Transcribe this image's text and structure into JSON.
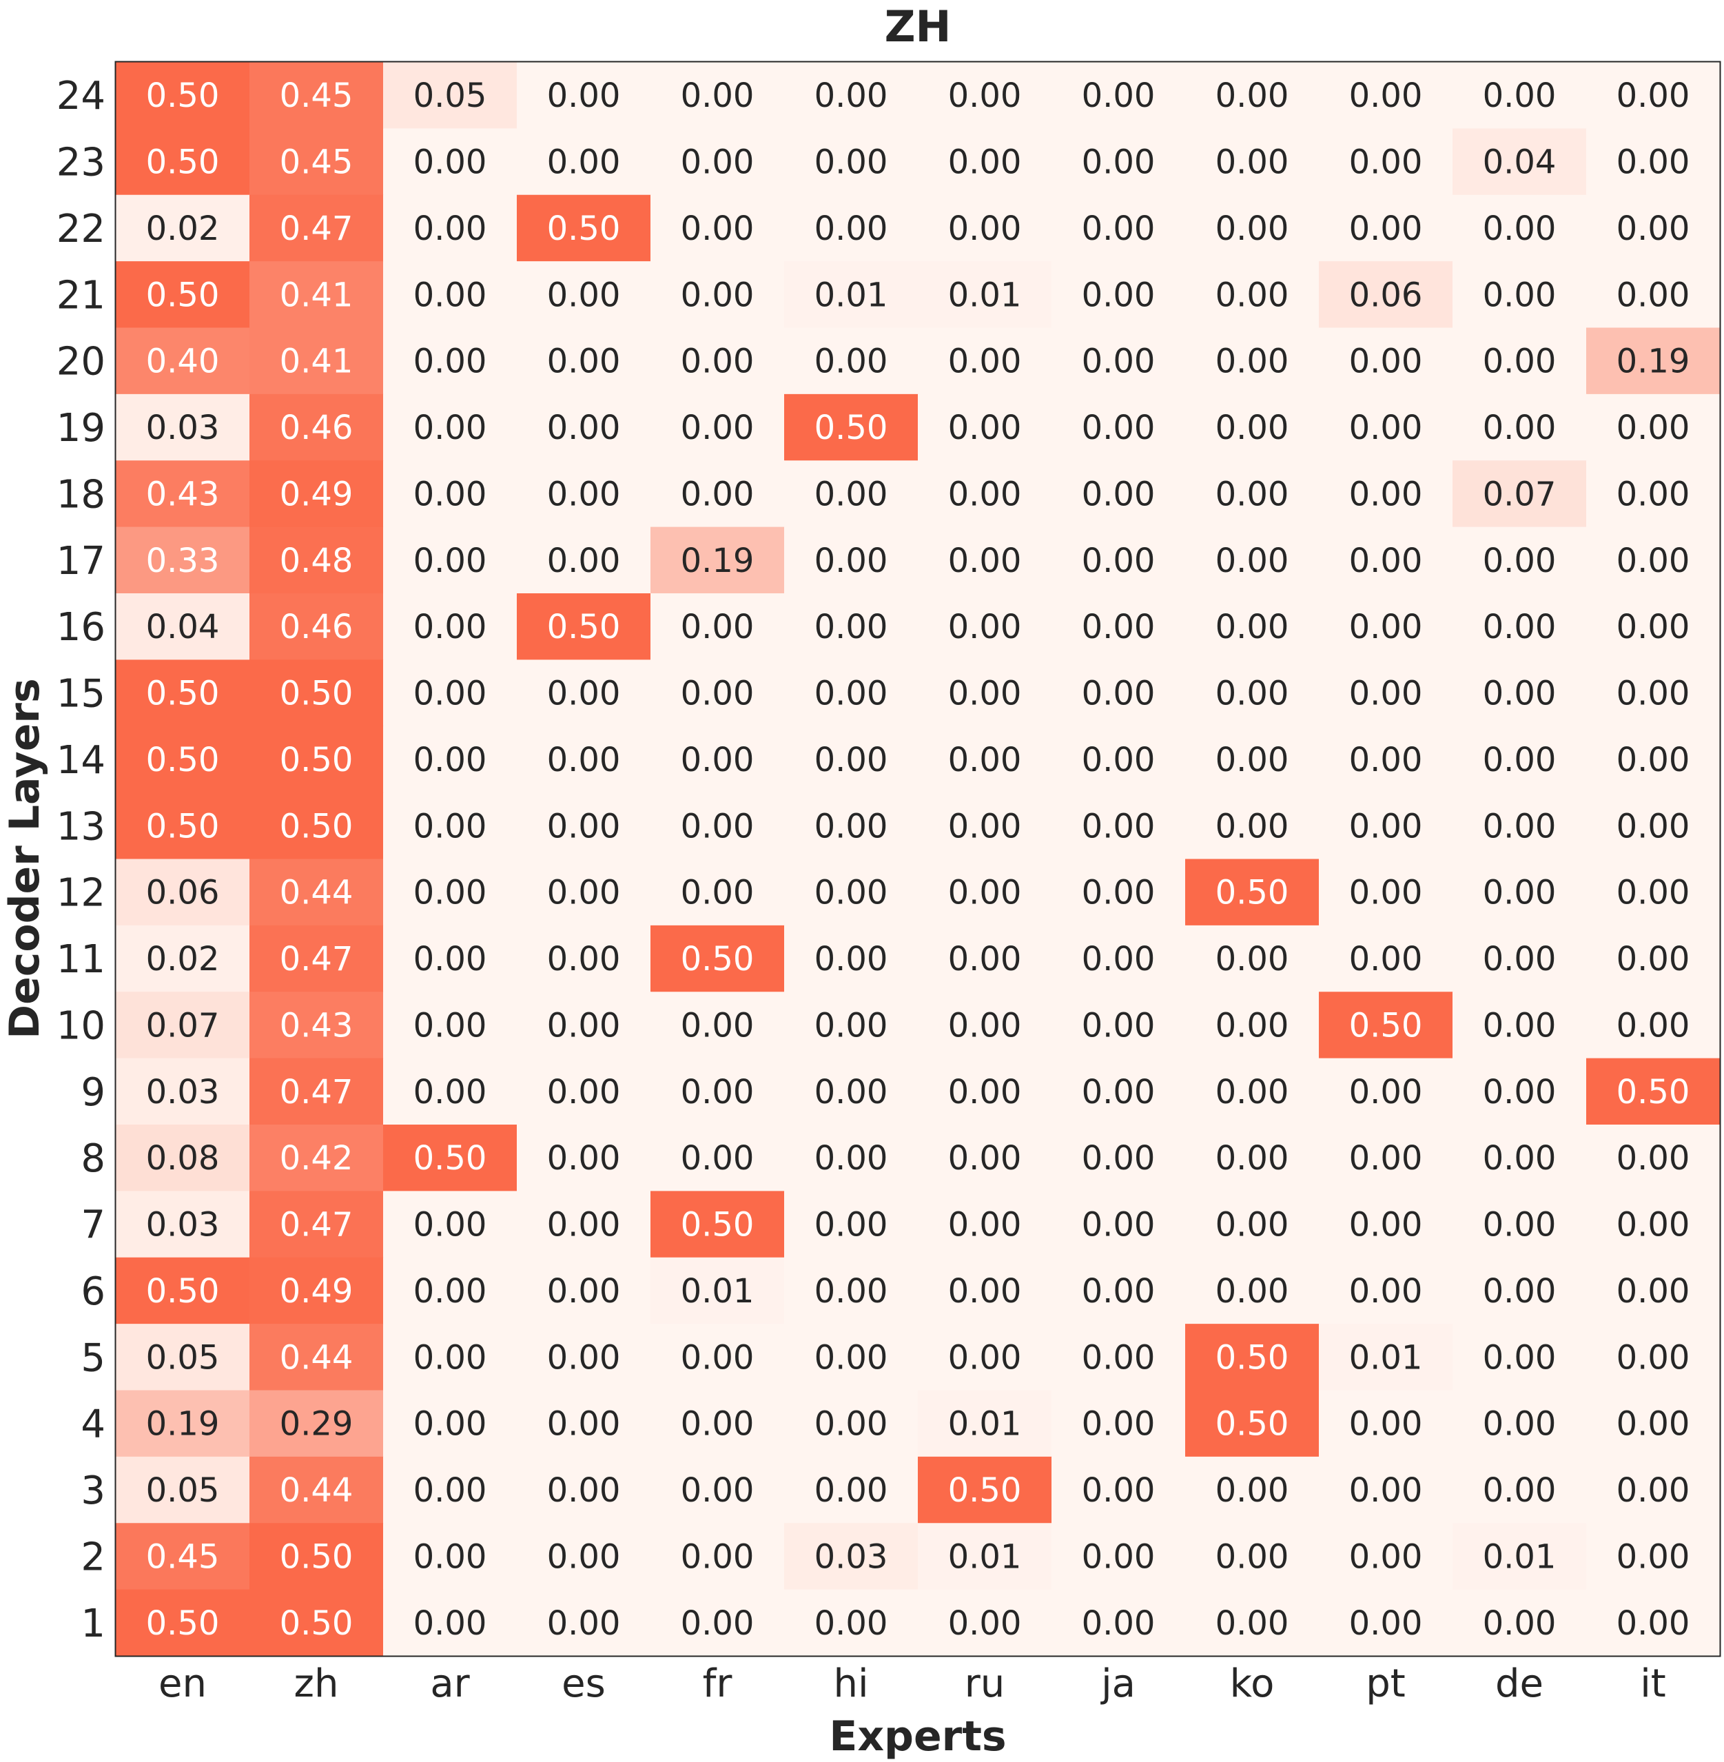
{
  "chart_data": {
    "type": "heatmap",
    "title": "ZH",
    "xlabel": "Experts",
    "ylabel": "Decoder Layers",
    "x_categories": [
      "en",
      "zh",
      "ar",
      "es",
      "fr",
      "hi",
      "ru",
      "ja",
      "ko",
      "pt",
      "de",
      "it"
    ],
    "y_categories": [
      "24",
      "23",
      "22",
      "21",
      "20",
      "19",
      "18",
      "17",
      "16",
      "15",
      "14",
      "13",
      "12",
      "11",
      "10",
      "9",
      "8",
      "7",
      "6",
      "5",
      "4",
      "3",
      "2",
      "1"
    ],
    "value_range": [
      0,
      0.5
    ],
    "colormap": {
      "low": "#fff5f0",
      "high": "#fb6a4a"
    },
    "values": [
      [
        "0.50",
        "0.45",
        "0.05",
        "0.00",
        "0.00",
        "0.00",
        "0.00",
        "0.00",
        "0.00",
        "0.00",
        "0.00",
        "0.00"
      ],
      [
        "0.50",
        "0.45",
        "0.00",
        "0.00",
        "0.00",
        "0.00",
        "0.00",
        "0.00",
        "0.00",
        "0.00",
        "0.04",
        "0.00"
      ],
      [
        "0.02",
        "0.47",
        "0.00",
        "0.50",
        "0.00",
        "0.00",
        "0.00",
        "0.00",
        "0.00",
        "0.00",
        "0.00",
        "0.00"
      ],
      [
        "0.50",
        "0.41",
        "0.00",
        "0.00",
        "0.00",
        "0.01",
        "0.01",
        "0.00",
        "0.00",
        "0.06",
        "0.00",
        "0.00"
      ],
      [
        "0.40",
        "0.41",
        "0.00",
        "0.00",
        "0.00",
        "0.00",
        "0.00",
        "0.00",
        "0.00",
        "0.00",
        "0.00",
        "0.19"
      ],
      [
        "0.03",
        "0.46",
        "0.00",
        "0.00",
        "0.00",
        "0.50",
        "0.00",
        "0.00",
        "0.00",
        "0.00",
        "0.00",
        "0.00"
      ],
      [
        "0.43",
        "0.49",
        "0.00",
        "0.00",
        "0.00",
        "0.00",
        "0.00",
        "0.00",
        "0.00",
        "0.00",
        "0.07",
        "0.00"
      ],
      [
        "0.33",
        "0.48",
        "0.00",
        "0.00",
        "0.19",
        "0.00",
        "0.00",
        "0.00",
        "0.00",
        "0.00",
        "0.00",
        "0.00"
      ],
      [
        "0.04",
        "0.46",
        "0.00",
        "0.50",
        "0.00",
        "0.00",
        "0.00",
        "0.00",
        "0.00",
        "0.00",
        "0.00",
        "0.00"
      ],
      [
        "0.50",
        "0.50",
        "0.00",
        "0.00",
        "0.00",
        "0.00",
        "0.00",
        "0.00",
        "0.00",
        "0.00",
        "0.00",
        "0.00"
      ],
      [
        "0.50",
        "0.50",
        "0.00",
        "0.00",
        "0.00",
        "0.00",
        "0.00",
        "0.00",
        "0.00",
        "0.00",
        "0.00",
        "0.00"
      ],
      [
        "0.50",
        "0.50",
        "0.00",
        "0.00",
        "0.00",
        "0.00",
        "0.00",
        "0.00",
        "0.00",
        "0.00",
        "0.00",
        "0.00"
      ],
      [
        "0.06",
        "0.44",
        "0.00",
        "0.00",
        "0.00",
        "0.00",
        "0.00",
        "0.00",
        "0.50",
        "0.00",
        "0.00",
        "0.00"
      ],
      [
        "0.02",
        "0.47",
        "0.00",
        "0.00",
        "0.50",
        "0.00",
        "0.00",
        "0.00",
        "0.00",
        "0.00",
        "0.00",
        "0.00"
      ],
      [
        "0.07",
        "0.43",
        "0.00",
        "0.00",
        "0.00",
        "0.00",
        "0.00",
        "0.00",
        "0.00",
        "0.50",
        "0.00",
        "0.00"
      ],
      [
        "0.03",
        "0.47",
        "0.00",
        "0.00",
        "0.00",
        "0.00",
        "0.00",
        "0.00",
        "0.00",
        "0.00",
        "0.00",
        "0.50"
      ],
      [
        "0.08",
        "0.42",
        "0.50",
        "0.00",
        "0.00",
        "0.00",
        "0.00",
        "0.00",
        "0.00",
        "0.00",
        "0.00",
        "0.00"
      ],
      [
        "0.03",
        "0.47",
        "0.00",
        "0.00",
        "0.50",
        "0.00",
        "0.00",
        "0.00",
        "0.00",
        "0.00",
        "0.00",
        "0.00"
      ],
      [
        "0.50",
        "0.49",
        "0.00",
        "0.00",
        "0.01",
        "0.00",
        "0.00",
        "0.00",
        "0.00",
        "0.00",
        "0.00",
        "0.00"
      ],
      [
        "0.05",
        "0.44",
        "0.00",
        "0.00",
        "0.00",
        "0.00",
        "0.00",
        "0.00",
        "0.50",
        "0.01",
        "0.00",
        "0.00"
      ],
      [
        "0.19",
        "0.29",
        "0.00",
        "0.00",
        "0.00",
        "0.00",
        "0.01",
        "0.00",
        "0.50",
        "0.00",
        "0.00",
        "0.00"
      ],
      [
        "0.05",
        "0.44",
        "0.00",
        "0.00",
        "0.00",
        "0.00",
        "0.50",
        "0.00",
        "0.00",
        "0.00",
        "0.00",
        "0.00"
      ],
      [
        "0.45",
        "0.50",
        "0.00",
        "0.00",
        "0.00",
        "0.03",
        "0.01",
        "0.00",
        "0.00",
        "0.00",
        "0.01",
        "0.00"
      ],
      [
        "0.50",
        "0.50",
        "0.00",
        "0.00",
        "0.00",
        "0.00",
        "0.00",
        "0.00",
        "0.00",
        "0.00",
        "0.00",
        "0.00"
      ]
    ]
  }
}
